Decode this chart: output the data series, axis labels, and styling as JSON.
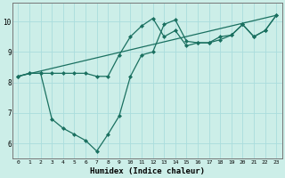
{
  "xlabel": "Humidex (Indice chaleur)",
  "bg_color": "#cceee8",
  "line_color": "#1a7060",
  "grid_color": "#aadddd",
  "xlim": [
    -0.5,
    23.5
  ],
  "ylim": [
    5.5,
    10.6
  ],
  "yticks": [
    6,
    7,
    8,
    9,
    10
  ],
  "xticks": [
    0,
    1,
    2,
    3,
    4,
    5,
    6,
    7,
    8,
    9,
    10,
    11,
    12,
    13,
    14,
    15,
    16,
    17,
    18,
    19,
    20,
    21,
    22,
    23
  ],
  "series": [
    {
      "x": [
        0,
        1,
        2,
        3,
        4,
        5,
        6,
        7,
        8,
        9,
        10,
        11,
        12,
        13,
        14,
        15,
        16,
        17,
        18,
        19,
        20,
        21,
        22,
        23
      ],
      "y": [
        8.2,
        8.3,
        8.3,
        8.3,
        8.3,
        8.3,
        8.3,
        8.2,
        8.2,
        8.9,
        9.5,
        9.85,
        10.1,
        9.5,
        9.7,
        9.2,
        9.3,
        9.3,
        9.5,
        9.55,
        9.9,
        9.5,
        9.7,
        10.2
      ],
      "has_marker": true
    },
    {
      "x": [
        0,
        1,
        2,
        3,
        4,
        5,
        6,
        7,
        8,
        9,
        10,
        11,
        12,
        13,
        14,
        15,
        16,
        17,
        18,
        19,
        20,
        21,
        22,
        23
      ],
      "y": [
        8.2,
        8.3,
        8.3,
        6.8,
        6.5,
        6.3,
        6.1,
        5.75,
        6.3,
        6.9,
        8.2,
        8.9,
        9.0,
        9.9,
        10.05,
        9.35,
        9.3,
        9.3,
        9.4,
        9.55,
        9.9,
        9.5,
        9.7,
        10.2
      ],
      "has_marker": true
    },
    {
      "x": [
        0,
        23
      ],
      "y": [
        8.2,
        10.2
      ],
      "has_marker": false
    }
  ]
}
